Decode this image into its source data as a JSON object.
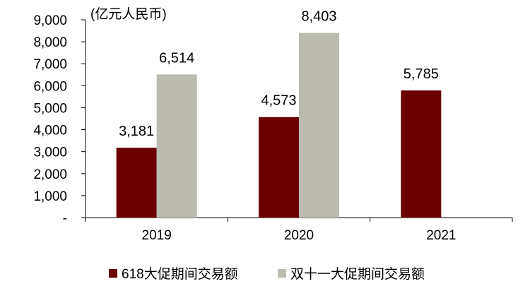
{
  "chart_data": {
    "type": "bar",
    "unit_label": "(亿元人民币)",
    "categories": [
      "2019",
      "2020",
      "2021"
    ],
    "series": [
      {
        "name": "618大促期间交易额",
        "color": "#6b0000",
        "values": [
          3181,
          4573,
          5785
        ],
        "labels": [
          "3,181",
          "4,573",
          "5,785"
        ]
      },
      {
        "name": "双十一大促期间交易额",
        "color": "#bcbbb0",
        "values": [
          6514,
          8403,
          null
        ],
        "labels": [
          "6,514",
          "8,403",
          ""
        ]
      }
    ],
    "ylim": [
      0,
      9000
    ],
    "yticks": [
      {
        "value": 0,
        "label": "-"
      },
      {
        "value": 1000,
        "label": "1,000"
      },
      {
        "value": 2000,
        "label": "2,000"
      },
      {
        "value": 3000,
        "label": "3,000"
      },
      {
        "value": 4000,
        "label": "4,000"
      },
      {
        "value": 5000,
        "label": "5,000"
      },
      {
        "value": 6000,
        "label": "6,000"
      },
      {
        "value": 7000,
        "label": "7,000"
      },
      {
        "value": 8000,
        "label": "8,000"
      },
      {
        "value": 9000,
        "label": "9,000"
      }
    ],
    "grid": false,
    "legend_position": "bottom"
  }
}
